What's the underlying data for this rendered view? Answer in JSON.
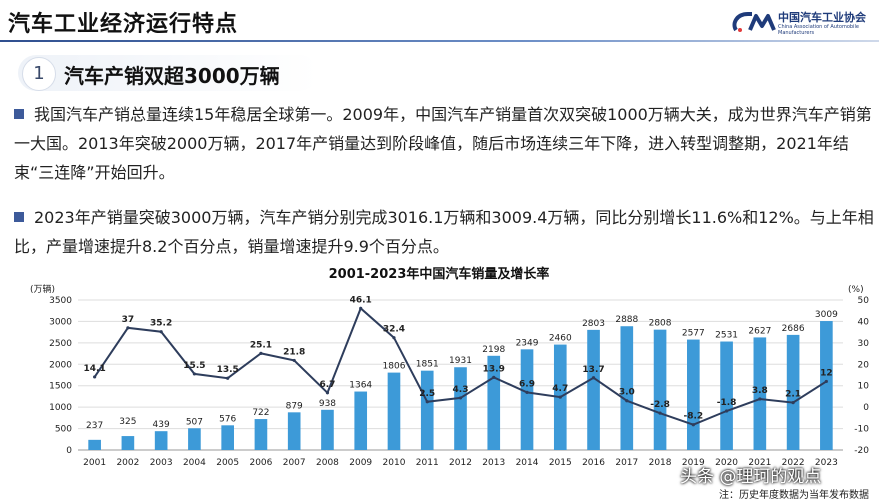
{
  "header": {
    "page_title": "汽车工业经济运行特点",
    "logo_text": "中国汽车工业协会",
    "logo_sub": "China Association of Automobile Manufacturers"
  },
  "section": {
    "number": "1",
    "title": "汽车产销双超3000万辆"
  },
  "paragraphs": [
    "我国汽车产销总量连续15年稳居全球第一。2009年，中国汽车产销量首次双突破1000万辆大关，成为世界汽车产销第一大国。2013年突破2000万辆，2017年产销量达到阶段峰值，随后市场连续三年下降，进入转型调整期，2021年结束“三连降”开始回升。",
    "2023年产销量突破3000万辆，汽车产销分别完成3016.1万辆和3009.4万辆，同比分别增长11.6%和12%。与上年相比，产量增速提升8.2个百分点，销量增速提升9.9个百分点。"
  ],
  "chart_data": {
    "type": "bar",
    "title": "2001-2023年中国汽车销量及增长率",
    "left_unit": "(万辆)",
    "right_unit": "(%)",
    "categories": [
      "2001",
      "2002",
      "2003",
      "2004",
      "2005",
      "2006",
      "2007",
      "2008",
      "2009",
      "2010",
      "2011",
      "2012",
      "2013",
      "2014",
      "2015",
      "2016",
      "2017",
      "2018",
      "2019",
      "2020",
      "2021",
      "2022",
      "2023"
    ],
    "series": [
      {
        "values": [
          237,
          325,
          439,
          507,
          576,
          722,
          879,
          938,
          1364,
          1806,
          1851,
          1931,
          2198,
          2349,
          2460,
          2803,
          2888,
          2808,
          2577,
          2531,
          2627,
          2686,
          3009
        ],
        "color": "#3d9ad8",
        "label_color": "#222222"
      },
      {
        "values": [
          14.1,
          37,
          35.2,
          15.5,
          13.5,
          25.1,
          21.8,
          6.7,
          46.1,
          32.4,
          2.5,
          4.3,
          13.9,
          6.9,
          4.7,
          13.7,
          3.0,
          -2.8,
          -8.2,
          -1.8,
          3.8,
          2.1,
          12
        ],
        "color": "#2e3d5c"
      }
    ],
    "left_axis": {
      "ylim": [
        0,
        3500
      ],
      "ticks": [
        "0",
        "500",
        "1000",
        "1500",
        "2000",
        "2500",
        "3000",
        "3500"
      ]
    },
    "right_axis": {
      "ylim": [
        -20,
        50
      ],
      "ticks": [
        "-20",
        "-10",
        "0",
        "10",
        "20",
        "30",
        "40",
        "50"
      ]
    },
    "grid": true
  },
  "footer": {
    "watermark": "头条 @理珂的观点",
    "note": "注：历史年度数据为当年发布数据"
  }
}
